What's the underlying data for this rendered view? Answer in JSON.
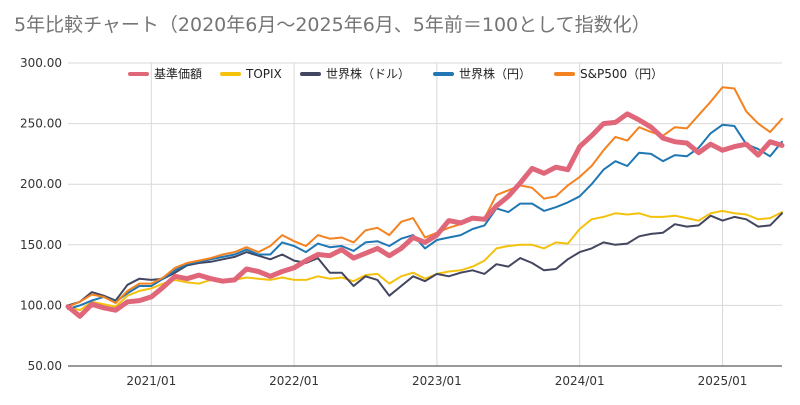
{
  "chart_data": {
    "type": "line",
    "title": "5年比較チャート（2020年6月〜2025年6月、5年前＝100として指数化）",
    "xlabel": "",
    "ylabel": "",
    "ylim": [
      50,
      300
    ],
    "yticks": [
      "50.00",
      "100.00",
      "150.00",
      "200.00",
      "250.00",
      "300.00"
    ],
    "xticks": [
      "2021/01",
      "2022/01",
      "2023/01",
      "2024/01",
      "2025/01"
    ],
    "legend_position": "top",
    "grid": true,
    "x": [
      "2020/06",
      "2020/07",
      "2020/08",
      "2020/09",
      "2020/10",
      "2020/11",
      "2020/12",
      "2021/01",
      "2021/02",
      "2021/03",
      "2021/04",
      "2021/05",
      "2021/06",
      "2021/07",
      "2021/08",
      "2021/09",
      "2021/10",
      "2021/11",
      "2021/12",
      "2022/01",
      "2022/02",
      "2022/03",
      "2022/04",
      "2022/05",
      "2022/06",
      "2022/07",
      "2022/08",
      "2022/09",
      "2022/10",
      "2022/11",
      "2022/12",
      "2023/01",
      "2023/02",
      "2023/03",
      "2023/04",
      "2023/05",
      "2023/06",
      "2023/07",
      "2023/08",
      "2023/09",
      "2023/10",
      "2023/11",
      "2023/12",
      "2024/01",
      "2024/02",
      "2024/03",
      "2024/04",
      "2024/05",
      "2024/06",
      "2024/07",
      "2024/08",
      "2024/09",
      "2024/10",
      "2024/11",
      "2024/12",
      "2025/01",
      "2025/02",
      "2025/03",
      "2025/04",
      "2025/05",
      "2025/06"
    ],
    "series": [
      {
        "name": "基準価額",
        "color": "#e0667a",
        "width": 5,
        "values": [
          99,
          91,
          101,
          98,
          96,
          103,
          104,
          107,
          115,
          124,
          122,
          125,
          122,
          120,
          121,
          130,
          128,
          124,
          128,
          131,
          137,
          142,
          141,
          146,
          139,
          143,
          147,
          141,
          147,
          156,
          152,
          158,
          170,
          168,
          172,
          171,
          182,
          190,
          201,
          213,
          209,
          214,
          212,
          231,
          240,
          250,
          251,
          258,
          253,
          247,
          238,
          235,
          234,
          226,
          233,
          228,
          231,
          233,
          224,
          235,
          232
        ]
      },
      {
        "name": "TOPIX",
        "color": "#f4c20d",
        "width": 2,
        "values": [
          99,
          96,
          103,
          101,
          99,
          108,
          112,
          114,
          118,
          121,
          119,
          118,
          121,
          119,
          121,
          123,
          122,
          121,
          123,
          121,
          121,
          124,
          122,
          123,
          120,
          125,
          126,
          118,
          124,
          127,
          122,
          126,
          128,
          129,
          132,
          137,
          147,
          149,
          150,
          150,
          147,
          152,
          151,
          163,
          171,
          173,
          176,
          175,
          176,
          173,
          173,
          174,
          172,
          170,
          176,
          178,
          176,
          175,
          171,
          172,
          177
        ]
      },
      {
        "name": "世界株（ドル）",
        "color": "#434660",
        "width": 2,
        "values": [
          100,
          103,
          111,
          108,
          104,
          117,
          122,
          121,
          122,
          127,
          133,
          135,
          136,
          138,
          140,
          144,
          141,
          138,
          142,
          137,
          135,
          139,
          127,
          127,
          116,
          124,
          121,
          108,
          116,
          124,
          120,
          126,
          124,
          127,
          129,
          126,
          134,
          132,
          139,
          135,
          129,
          130,
          138,
          144,
          147,
          152,
          150,
          151,
          157,
          159,
          160,
          167,
          165,
          166,
          174,
          170,
          173,
          171,
          165,
          166,
          176
        ]
      },
      {
        "name": "世界株（円）",
        "color": "#1f77b4",
        "width": 2,
        "values": [
          97,
          100,
          104,
          107,
          103,
          110,
          116,
          116,
          122,
          129,
          134,
          136,
          138,
          140,
          142,
          146,
          142,
          142,
          152,
          149,
          144,
          151,
          148,
          149,
          145,
          152,
          153,
          149,
          155,
          158,
          147,
          154,
          156,
          158,
          163,
          166,
          180,
          177,
          184,
          184,
          178,
          181,
          185,
          190,
          200,
          212,
          219,
          215,
          226,
          225,
          219,
          224,
          223,
          230,
          242,
          249,
          248,
          233,
          229,
          223,
          235
        ]
      },
      {
        "name": "S&P500（円）",
        "color": "#f58220",
        "width": 2,
        "values": [
          99,
          103,
          109,
          107,
          102,
          112,
          118,
          118,
          123,
          131,
          135,
          137,
          139,
          142,
          144,
          148,
          144,
          149,
          158,
          153,
          149,
          158,
          155,
          156,
          152,
          162,
          164,
          158,
          169,
          172,
          156,
          160,
          164,
          167,
          172,
          172,
          191,
          195,
          199,
          197,
          188,
          190,
          199,
          206,
          215,
          228,
          239,
          236,
          247,
          243,
          240,
          247,
          246,
          257,
          268,
          280,
          279,
          260,
          250,
          243,
          254
        ]
      }
    ]
  }
}
